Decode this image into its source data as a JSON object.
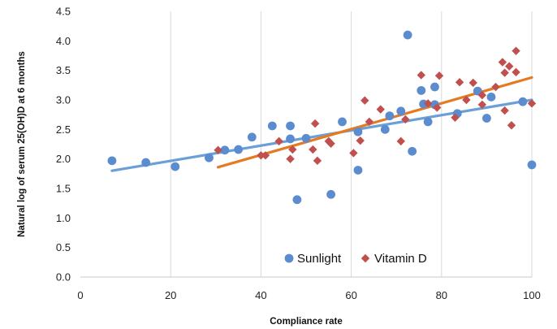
{
  "chart_data": {
    "type": "scatter",
    "xlabel": "Compliance rate",
    "ylabel": "Natural log of serum 25(OH)D at 6 months",
    "xlim": [
      0,
      100
    ],
    "ylim": [
      0,
      4.5
    ],
    "x_ticks": [
      "0",
      "20",
      "40",
      "60",
      "80",
      "100"
    ],
    "y_ticks": [
      "0.0",
      "0.5",
      "1.0",
      "1.5",
      "2.0",
      "2.5",
      "3.0",
      "3.5",
      "4.0",
      "4.5"
    ],
    "grid": "vertical",
    "legend_position": "bottom-center",
    "series": [
      {
        "name": "Sunlight",
        "marker": "circle",
        "color": "#5b8ccf",
        "points": [
          [
            7,
            1.97
          ],
          [
            14.5,
            1.94
          ],
          [
            21,
            1.87
          ],
          [
            28.5,
            2.02
          ],
          [
            32,
            2.15
          ],
          [
            35,
            2.16
          ],
          [
            38,
            2.37
          ],
          [
            42.5,
            2.56
          ],
          [
            46.5,
            2.56
          ],
          [
            46.5,
            2.34
          ],
          [
            48,
            1.31
          ],
          [
            50,
            2.35
          ],
          [
            55.5,
            1.4
          ],
          [
            58,
            2.63
          ],
          [
            61.5,
            2.46
          ],
          [
            61.5,
            1.81
          ],
          [
            67.5,
            2.5
          ],
          [
            68.5,
            2.73
          ],
          [
            71,
            2.81
          ],
          [
            72.5,
            4.1
          ],
          [
            73.5,
            2.13
          ],
          [
            75.5,
            3.16
          ],
          [
            76,
            2.93
          ],
          [
            77,
            2.63
          ],
          [
            78.5,
            3.22
          ],
          [
            78.5,
            2.92
          ],
          [
            83.5,
            2.77
          ],
          [
            88,
            3.15
          ],
          [
            90,
            2.69
          ],
          [
            91,
            3.05
          ],
          [
            98,
            2.97
          ],
          [
            100,
            1.9
          ]
        ],
        "trendline": [
          [
            7,
            1.8
          ],
          [
            100,
            3.0
          ]
        ],
        "trend_color": "#6a9fd8"
      },
      {
        "name": "Vitamin D",
        "marker": "diamond",
        "color": "#c0504d",
        "points": [
          [
            30.5,
            2.15
          ],
          [
            40,
            2.06
          ],
          [
            41,
            2.06
          ],
          [
            44,
            2.3
          ],
          [
            46.5,
            2.0
          ],
          [
            47,
            2.16
          ],
          [
            51.5,
            2.16
          ],
          [
            52,
            2.6
          ],
          [
            52.5,
            1.97
          ],
          [
            55,
            2.3
          ],
          [
            55.5,
            2.26
          ],
          [
            60.5,
            2.1
          ],
          [
            62,
            2.31
          ],
          [
            63,
            2.99
          ],
          [
            64,
            2.63
          ],
          [
            66.5,
            2.84
          ],
          [
            71,
            2.3
          ],
          [
            72,
            2.67
          ],
          [
            75.5,
            3.42
          ],
          [
            77,
            2.94
          ],
          [
            79,
            2.87
          ],
          [
            79.5,
            3.41
          ],
          [
            83,
            2.7
          ],
          [
            84,
            3.3
          ],
          [
            85.5,
            3.0
          ],
          [
            87,
            3.29
          ],
          [
            89,
            2.92
          ],
          [
            89,
            3.08
          ],
          [
            92,
            3.22
          ],
          [
            93.5,
            3.64
          ],
          [
            94,
            3.46
          ],
          [
            94,
            2.82
          ],
          [
            95,
            3.57
          ],
          [
            95.5,
            2.57
          ],
          [
            96.5,
            3.83
          ],
          [
            96.5,
            3.47
          ],
          [
            100,
            2.94
          ]
        ],
        "trendline": [
          [
            30.5,
            1.86
          ],
          [
            100,
            3.38
          ]
        ],
        "trend_color": "#e47b22"
      }
    ]
  }
}
